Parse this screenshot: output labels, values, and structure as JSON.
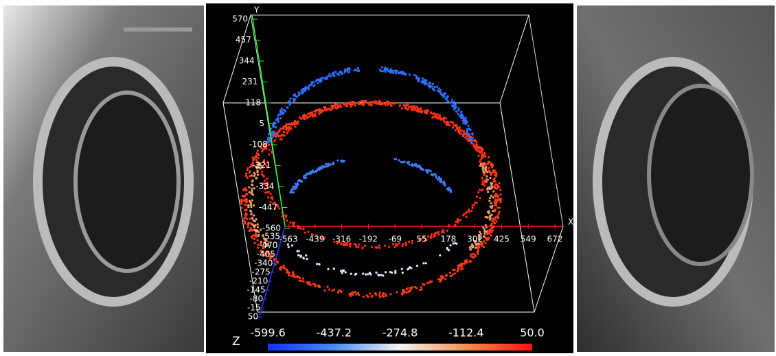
{
  "plot": {
    "axis_x": "X",
    "axis_y": "Y",
    "axis_z": "Z",
    "yticks": [
      "570",
      "457",
      "344",
      "231",
      "118",
      "5",
      "-108",
      "-221",
      "-334",
      "-447",
      "-560"
    ],
    "xticks": [
      "-563",
      "-439",
      "-316",
      "-192",
      "-69",
      "55",
      "178",
      "302",
      "425",
      "549",
      "672"
    ],
    "zticks": [
      "-535",
      "-470",
      "-405",
      "-340",
      "-275",
      "-210",
      "-145",
      "-80",
      "-15",
      "50"
    ],
    "colorbar": [
      "-599.6",
      "-437.2",
      "-274.8",
      "-112.4",
      "50.0"
    ]
  }
}
